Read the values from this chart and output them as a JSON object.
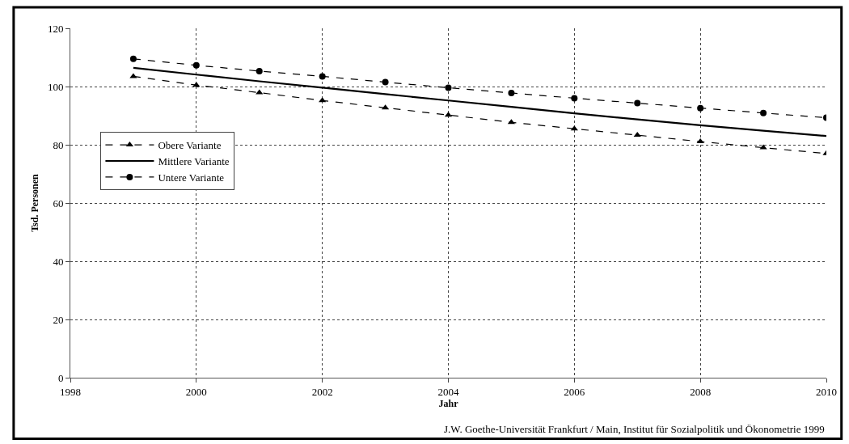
{
  "chart_data": {
    "type": "line",
    "xlabel": "Jahr",
    "ylabel": "Tsd. Personen",
    "x": [
      1999,
      2000,
      2001,
      2002,
      2003,
      2004,
      2005,
      2006,
      2007,
      2008,
      2009,
      2010
    ],
    "series": [
      {
        "name": "Obere Variante",
        "color": "#000000",
        "marker": "triangle",
        "line_style": "dashed",
        "values": [
          103.5,
          100.5,
          97.9,
          95.2,
          92.7,
          90.2,
          87.7,
          85.5,
          83.3,
          81.1,
          79,
          77
        ]
      },
      {
        "name": "Mittlere Variante",
        "color": "#000000",
        "marker": "none",
        "line_style": "solid",
        "values": [
          106.4,
          104.1,
          101.8,
          99.6,
          97.4,
          95.2,
          93,
          90.8,
          88.7,
          86.7,
          84.8,
          83
        ]
      },
      {
        "name": "Untere Variante",
        "color": "#000000",
        "marker": "circle",
        "line_style": "dashed",
        "values": [
          109.5,
          107.3,
          105.3,
          103.5,
          101.5,
          99.6,
          97.8,
          96,
          94.3,
          92.6,
          90.9,
          89.3
        ]
      }
    ],
    "xlim": [
      1998,
      2010
    ],
    "xticks": [
      1998,
      2000,
      2002,
      2004,
      2006,
      2008,
      2010
    ],
    "ylim": [
      0,
      120
    ],
    "yticks": [
      0,
      20,
      40,
      60,
      80,
      100,
      120
    ],
    "grid": true,
    "legend": "left",
    "annotations": [
      "J.W. Goethe-Universität Frankfurt / Main, Institut für Sozialpolitik und Ökonometrie 1999"
    ]
  }
}
